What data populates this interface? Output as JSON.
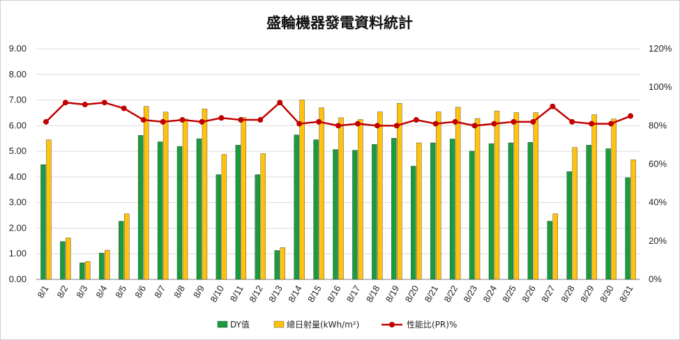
{
  "chart_data": {
    "type": "bar",
    "title": "盛輪機器發電資料統計",
    "categories": [
      "8/1",
      "8/2",
      "8/3",
      "8/4",
      "8/5",
      "8/6",
      "8/7",
      "8/8",
      "8/9",
      "8/10",
      "8/11",
      "8/12",
      "8/13",
      "8/14",
      "8/15",
      "8/16",
      "8/17",
      "8/18",
      "8/19",
      "8/20",
      "8/21",
      "8/22",
      "8/23",
      "8/24",
      "8/25",
      "8/26",
      "8/27",
      "8/28",
      "8/29",
      "8/30",
      "8/31"
    ],
    "y_left": {
      "range": [
        0,
        9
      ],
      "ticks": [
        "0.00",
        "1.00",
        "2.00",
        "3.00",
        "4.00",
        "5.00",
        "6.00",
        "7.00",
        "8.00",
        "9.00"
      ]
    },
    "y_right": {
      "range": [
        0,
        120
      ],
      "ticks": [
        "0%",
        "20%",
        "40%",
        "60%",
        "80%",
        "100%",
        "120%"
      ]
    },
    "grid": true,
    "legend_position": "bottom",
    "series": [
      {
        "name": "DY值",
        "type": "bar",
        "axis": "left",
        "color": "#1a9c3e",
        "values": [
          4.48,
          1.48,
          0.65,
          1.03,
          2.27,
          5.62,
          5.37,
          5.19,
          5.49,
          4.09,
          5.24,
          4.09,
          1.13,
          5.64,
          5.45,
          5.07,
          5.04,
          5.27,
          5.51,
          4.42,
          5.33,
          5.48,
          5.01,
          5.3,
          5.33,
          5.35,
          2.27,
          4.21,
          5.24,
          5.1,
          3.97
        ]
      },
      {
        "name": "總日射量(kWh/m²)",
        "type": "bar",
        "axis": "left",
        "color": "#ffc20e",
        "values": [
          5.45,
          1.62,
          0.7,
          1.14,
          2.56,
          6.75,
          6.53,
          6.26,
          6.65,
          4.88,
          6.32,
          4.91,
          1.24,
          7.0,
          6.7,
          6.31,
          6.24,
          6.54,
          6.87,
          5.33,
          6.54,
          6.72,
          6.28,
          6.57,
          6.51,
          6.51,
          2.56,
          5.15,
          6.43,
          6.26,
          4.67
        ]
      },
      {
        "name": "性能比(PR)%",
        "type": "line",
        "axis": "right",
        "color": "#c00000",
        "values": [
          82,
          92,
          91,
          92,
          89,
          83,
          82,
          83,
          82,
          84,
          83,
          83,
          92,
          81,
          82,
          80,
          81,
          80,
          80,
          83,
          81,
          82,
          80,
          81,
          82,
          82,
          90,
          82,
          81,
          81,
          85
        ]
      }
    ]
  }
}
